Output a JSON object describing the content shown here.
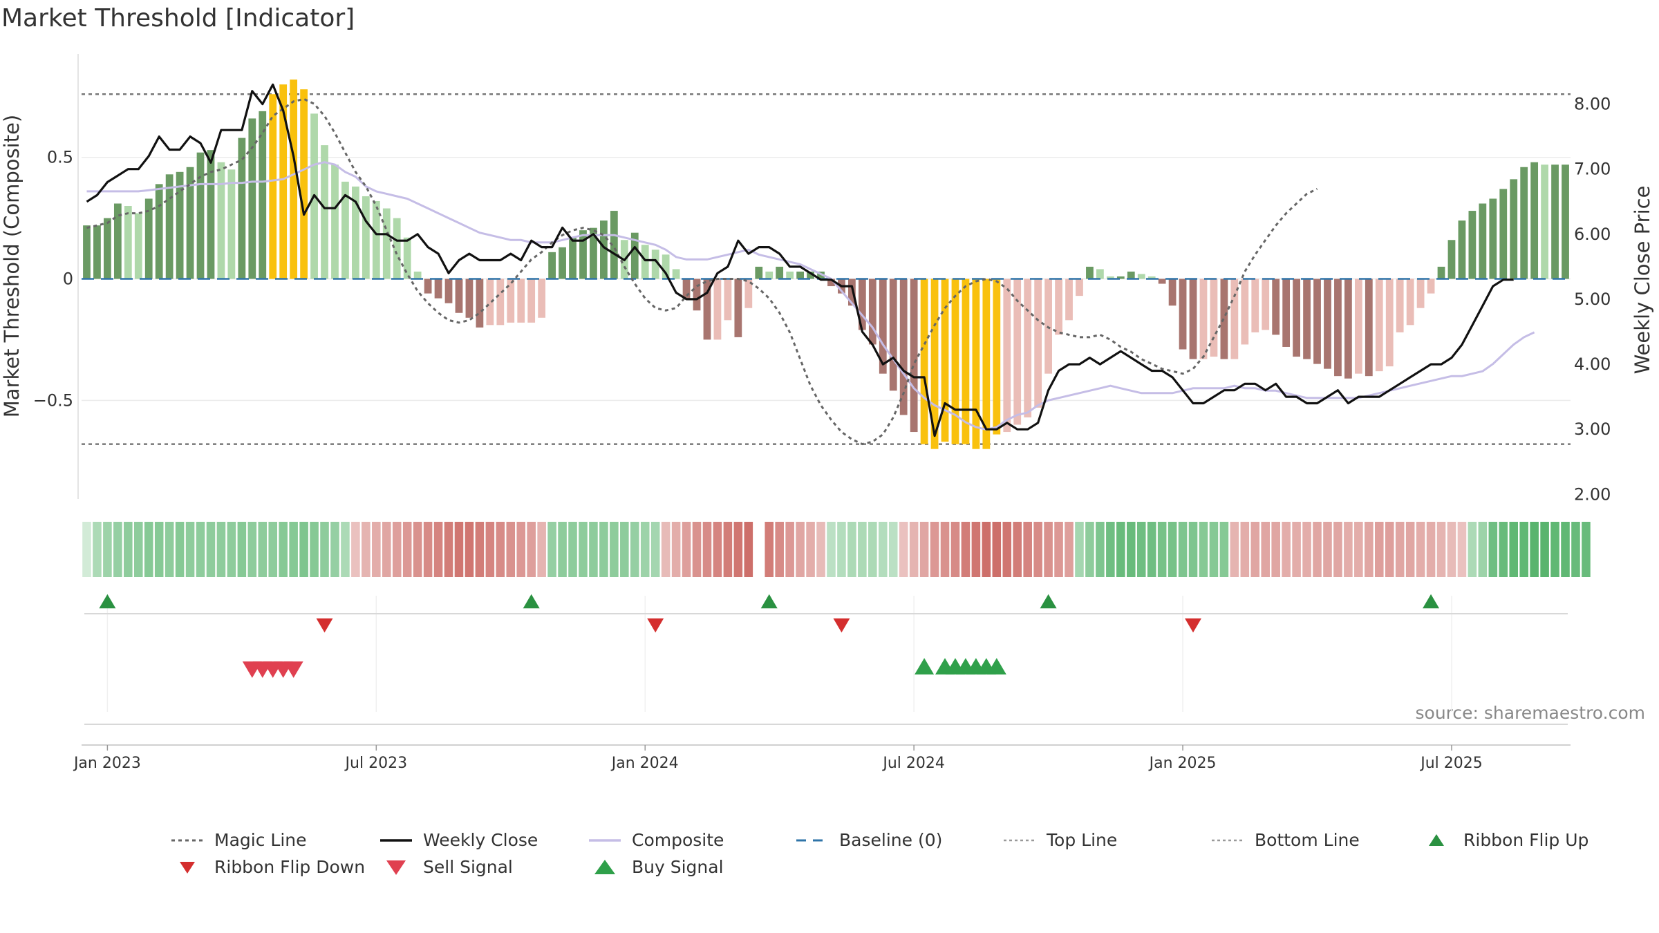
{
  "chart_data": {
    "type": "bar",
    "title": "Market Threshold [Indicator]",
    "ylabel": "Market Threshold (Composite)",
    "y2label": "Weekly Close Price",
    "source": "source: sharemaestro.com",
    "ylim": [
      -0.9,
      0.92
    ],
    "y2lim": [
      1.95,
      8.75
    ],
    "yticks": [
      {
        "v": 0.5,
        "label": "0.5"
      },
      {
        "v": 0,
        "label": "0"
      },
      {
        "v": -0.5,
        "label": "−0.5"
      }
    ],
    "y2ticks": [
      {
        "v": 8,
        "label": "8.00"
      },
      {
        "v": 7,
        "label": "7.00"
      },
      {
        "v": 6,
        "label": "6.00"
      },
      {
        "v": 5,
        "label": "5.00"
      },
      {
        "v": 4,
        "label": "4.00"
      },
      {
        "v": 3,
        "label": "3.00"
      },
      {
        "v": 2,
        "label": "2.00"
      }
    ],
    "xticks": [
      {
        "week": 2,
        "label": "Jan 2023"
      },
      {
        "week": 28,
        "label": "Jul 2023"
      },
      {
        "week": 54,
        "label": "Jan 2024"
      },
      {
        "week": 80,
        "label": "Jul 2024"
      },
      {
        "week": 106,
        "label": "Jan 2025"
      },
      {
        "week": 132,
        "label": "Jul 2025"
      }
    ],
    "top_line": 0.76,
    "bottom_line": -0.68,
    "composite": [
      0.36,
      0.36,
      0.36,
      0.36,
      0.36,
      0.36,
      0.365,
      0.37,
      0.375,
      0.38,
      0.385,
      0.39,
      0.39,
      0.39,
      0.395,
      0.395,
      0.4,
      0.4,
      0.405,
      0.41,
      0.43,
      0.45,
      0.47,
      0.48,
      0.47,
      0.44,
      0.42,
      0.38,
      0.36,
      0.35,
      0.34,
      0.33,
      0.31,
      0.29,
      0.27,
      0.25,
      0.23,
      0.21,
      0.19,
      0.18,
      0.17,
      0.16,
      0.16,
      0.15,
      0.15,
      0.15,
      0.16,
      0.17,
      0.18,
      0.18,
      0.18,
      0.18,
      0.17,
      0.16,
      0.15,
      0.14,
      0.12,
      0.09,
      0.08,
      0.08,
      0.08,
      0.09,
      0.1,
      0.11,
      0.12,
      0.1,
      0.09,
      0.08,
      0.07,
      0.06,
      0.04,
      0.02,
      0.0,
      -0.05,
      -0.1,
      -0.15,
      -0.2,
      -0.27,
      -0.33,
      -0.39,
      -0.45,
      -0.49,
      -0.52,
      -0.54,
      -0.56,
      -0.59,
      -0.61,
      -0.62,
      -0.61,
      -0.58,
      -0.56,
      -0.55,
      -0.52,
      -0.5,
      -0.49,
      -0.48,
      -0.47,
      -0.46,
      -0.45,
      -0.44,
      -0.45,
      -0.46,
      -0.47,
      -0.47,
      -0.47,
      -0.47,
      -0.46,
      -0.45,
      -0.45,
      -0.45,
      -0.45,
      -0.44,
      -0.45,
      -0.45,
      -0.46,
      -0.46,
      -0.47,
      -0.48,
      -0.49,
      -0.49,
      -0.49,
      -0.49,
      -0.49,
      -0.49,
      -0.48,
      -0.47,
      -0.46,
      -0.45,
      -0.44,
      -0.43,
      -0.42,
      -0.41,
      -0.4,
      -0.4,
      -0.39,
      -0.38,
      -0.35,
      -0.31,
      -0.27,
      -0.24,
      -0.22
    ],
    "magic_line": [
      0.21,
      0.22,
      0.23,
      0.26,
      0.27,
      0.27,
      0.28,
      0.3,
      0.33,
      0.36,
      0.39,
      0.42,
      0.44,
      0.45,
      0.47,
      0.49,
      0.54,
      0.6,
      0.67,
      0.7,
      0.73,
      0.74,
      0.72,
      0.67,
      0.6,
      0.52,
      0.44,
      0.38,
      0.3,
      0.2,
      0.1,
      0.02,
      -0.05,
      -0.1,
      -0.14,
      -0.17,
      -0.18,
      -0.17,
      -0.14,
      -0.1,
      -0.06,
      -0.02,
      0.03,
      0.08,
      0.11,
      0.15,
      0.18,
      0.2,
      0.21,
      0.2,
      0.18,
      0.13,
      0.05,
      -0.02,
      -0.08,
      -0.12,
      -0.13,
      -0.12,
      -0.07,
      -0.03,
      -0.01,
      0.0,
      0.0,
      0.0,
      -0.01,
      -0.04,
      -0.08,
      -0.14,
      -0.22,
      -0.33,
      -0.44,
      -0.52,
      -0.58,
      -0.63,
      -0.66,
      -0.68,
      -0.67,
      -0.64,
      -0.57,
      -0.47,
      -0.35,
      -0.27,
      -0.19,
      -0.12,
      -0.07,
      -0.03,
      -0.01,
      0.0,
      -0.01,
      -0.04,
      -0.09,
      -0.13,
      -0.17,
      -0.2,
      -0.22,
      -0.23,
      -0.24,
      -0.24,
      -0.23,
      -0.25,
      -0.28,
      -0.3,
      -0.33,
      -0.35,
      -0.37,
      -0.38,
      -0.39,
      -0.37,
      -0.32,
      -0.24,
      -0.16,
      -0.07,
      0.03,
      0.1,
      0.16,
      0.22,
      0.27,
      0.31,
      0.35,
      0.37
    ],
    "bars": [
      0.22,
      0.22,
      0.25,
      0.31,
      0.3,
      0.27,
      0.33,
      0.39,
      0.43,
      0.44,
      0.46,
      0.52,
      0.53,
      0.48,
      0.45,
      0.58,
      0.66,
      0.69,
      0.76,
      0.8,
      0.82,
      0.78,
      0.68,
      0.55,
      0.47,
      0.4,
      0.38,
      0.34,
      0.32,
      0.29,
      0.25,
      0.17,
      0.03,
      -0.06,
      -0.08,
      -0.1,
      -0.14,
      -0.16,
      -0.2,
      -0.19,
      -0.19,
      -0.18,
      -0.18,
      -0.18,
      -0.16,
      0.11,
      0.13,
      0.17,
      0.2,
      0.21,
      0.24,
      0.28,
      0.16,
      0.19,
      0.14,
      0.12,
      0.1,
      0.04,
      -0.08,
      -0.13,
      -0.25,
      -0.25,
      -0.17,
      -0.24,
      -0.12,
      0.05,
      0.03,
      0.05,
      0.03,
      0.03,
      0.03,
      0.03,
      -0.03,
      -0.06,
      -0.11,
      -0.21,
      -0.27,
      -0.39,
      -0.46,
      -0.56,
      -0.63,
      -0.68,
      -0.7,
      -0.67,
      -0.68,
      -0.68,
      -0.7,
      -0.7,
      -0.64,
      -0.63,
      -0.6,
      -0.57,
      -0.53,
      -0.39,
      -0.23,
      -0.17,
      -0.07,
      0.05,
      0.04,
      0.01,
      0.01,
      0.03,
      0.02,
      0.01,
      -0.02,
      -0.11,
      -0.29,
      -0.33,
      -0.33,
      -0.32,
      -0.33,
      -0.33,
      -0.27,
      -0.22,
      -0.21,
      -0.23,
      -0.28,
      -0.32,
      -0.33,
      -0.35,
      -0.37,
      -0.4,
      -0.41,
      -0.39,
      -0.4,
      -0.38,
      -0.36,
      -0.22,
      -0.19,
      -0.12,
      -0.06,
      0.05,
      0.16,
      0.24,
      0.28,
      0.31,
      0.33,
      0.37,
      0.41,
      0.46,
      0.48,
      0.47,
      0.47,
      0.47
    ],
    "weekly_close": [
      6.5,
      6.6,
      6.8,
      6.9,
      7.0,
      7.0,
      7.2,
      7.5,
      7.3,
      7.3,
      7.5,
      7.4,
      7.1,
      7.6,
      7.6,
      7.6,
      8.2,
      8.0,
      8.3,
      7.9,
      7.2,
      6.3,
      6.6,
      6.4,
      6.4,
      6.6,
      6.5,
      6.2,
      6.0,
      6.0,
      5.9,
      5.9,
      6.0,
      5.8,
      5.7,
      5.4,
      5.6,
      5.7,
      5.6,
      5.6,
      5.6,
      5.7,
      5.6,
      5.9,
      5.8,
      5.8,
      6.1,
      5.9,
      5.9,
      6.0,
      5.8,
      5.7,
      5.6,
      5.8,
      5.6,
      5.6,
      5.4,
      5.1,
      5.0,
      5.0,
      5.1,
      5.4,
      5.5,
      5.9,
      5.7,
      5.8,
      5.8,
      5.7,
      5.5,
      5.5,
      5.4,
      5.3,
      5.3,
      5.2,
      5.2,
      4.5,
      4.3,
      4.0,
      4.1,
      3.9,
      3.8,
      3.8,
      2.9,
      3.4,
      3.3,
      3.3,
      3.3,
      3.0,
      3.0,
      3.1,
      3.0,
      3.0,
      3.1,
      3.6,
      3.9,
      4.0,
      4.0,
      4.1,
      4.0,
      4.1,
      4.2,
      4.1,
      4.0,
      3.9,
      3.9,
      3.8,
      3.6,
      3.4,
      3.4,
      3.5,
      3.6,
      3.6,
      3.7,
      3.7,
      3.6,
      3.7,
      3.5,
      3.5,
      3.4,
      3.4,
      3.5,
      3.6,
      3.4,
      3.5,
      3.5,
      3.5,
      3.6,
      3.7,
      3.8,
      3.9,
      4.0,
      4.0,
      4.1,
      4.3,
      4.6,
      4.9,
      5.2,
      5.3,
      5.3
    ],
    "gold_weeks": [
      18,
      19,
      20,
      21,
      81,
      82,
      83,
      84,
      85,
      86,
      87,
      88
    ],
    "ribbon": [
      0.05,
      0.3,
      0.4,
      0.45,
      0.5,
      0.5,
      0.55,
      0.55,
      0.5,
      0.55,
      0.5,
      0.5,
      0.5,
      0.5,
      0.5,
      0.55,
      0.5,
      0.5,
      0.5,
      0.55,
      0.55,
      0.6,
      0.55,
      0.5,
      0.45,
      0.3,
      -0.2,
      -0.3,
      -0.35,
      -0.4,
      -0.45,
      -0.5,
      -0.55,
      -0.6,
      -0.65,
      -0.7,
      -0.75,
      -0.75,
      -0.7,
      -0.65,
      -0.6,
      -0.55,
      -0.5,
      -0.45,
      -0.3,
      0.45,
      0.5,
      0.5,
      0.5,
      0.5,
      0.5,
      0.5,
      0.5,
      0.45,
      0.4,
      0.35,
      -0.25,
      -0.35,
      -0.45,
      -0.55,
      -0.6,
      -0.65,
      -0.7,
      -0.75,
      -0.8,
      0.0,
      -0.7,
      -0.6,
      -0.5,
      -0.4,
      -0.35,
      -0.25,
      0.2,
      0.25,
      0.3,
      0.3,
      0.3,
      0.25,
      0.2,
      -0.2,
      -0.3,
      -0.4,
      -0.5,
      -0.55,
      -0.6,
      -0.7,
      -0.75,
      -0.8,
      -0.8,
      -0.75,
      -0.7,
      -0.65,
      -0.6,
      -0.55,
      -0.5,
      -0.45,
      0.35,
      0.5,
      0.6,
      0.7,
      0.75,
      0.75,
      0.7,
      0.7,
      0.65,
      0.65,
      0.6,
      0.6,
      0.55,
      0.55,
      0.55,
      -0.3,
      -0.35,
      -0.4,
      -0.4,
      -0.4,
      -0.35,
      -0.35,
      -0.35,
      -0.4,
      -0.4,
      -0.4,
      -0.35,
      -0.35,
      -0.4,
      -0.45,
      -0.45,
      -0.4,
      -0.4,
      -0.35,
      -0.35,
      -0.3,
      -0.25,
      -0.2,
      0.3,
      0.4,
      0.7,
      0.75,
      0.8,
      0.8,
      0.85,
      0.85,
      0.8,
      0.8,
      0.75,
      0.75
    ],
    "ribbon_flip_up": [
      2,
      43,
      66,
      93,
      130
    ],
    "ribbon_flip_down": [
      23,
      55,
      73,
      107
    ],
    "sell_signal": [
      16,
      17,
      18,
      19,
      20
    ],
    "buy_signal": [
      81,
      83,
      84,
      85,
      86,
      87,
      88
    ],
    "legend": [
      {
        "key": "magic",
        "label": "Magic Line"
      },
      {
        "key": "close",
        "label": "Weekly Close"
      },
      {
        "key": "composite",
        "label": "Composite"
      },
      {
        "key": "baseline",
        "label": "Baseline (0)"
      },
      {
        "key": "top",
        "label": "Top Line"
      },
      {
        "key": "bottom",
        "label": "Bottom Line"
      },
      {
        "key": "flipup",
        "label": "Ribbon Flip Up"
      },
      {
        "key": "flipdown",
        "label": "Ribbon Flip Down"
      },
      {
        "key": "sell",
        "label": "Sell Signal"
      },
      {
        "key": "buy",
        "label": "Buy Signal"
      }
    ],
    "colors": {
      "pos_strong": "#6a9a63",
      "pos_weak": "#afd8aa",
      "neg_strong": "#a8756f",
      "neg_weak": "#eabdb7",
      "gold": "#f9c10d",
      "close": "#111111",
      "composite": "#c5bde6",
      "magic": "#666666",
      "baseline": "#2f74a8",
      "threshold": "#777777",
      "flip_up": "#2a9141",
      "flip_down": "#d42e2e",
      "sell": "#e04050",
      "buy": "#2fa04a",
      "source": "#888888"
    }
  }
}
